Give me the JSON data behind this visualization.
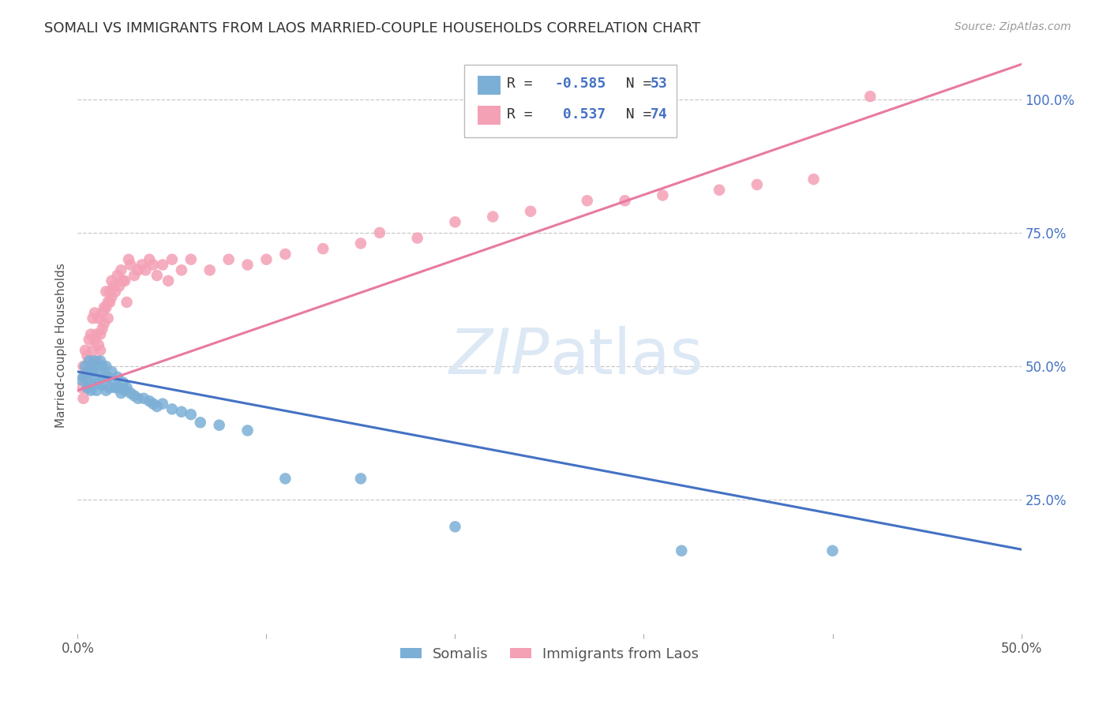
{
  "title": "SOMALI VS IMMIGRANTS FROM LAOS MARRIED-COUPLE HOUSEHOLDS CORRELATION CHART",
  "source": "Source: ZipAtlas.com",
  "ylabel": "Married-couple Households",
  "xlim": [
    0.0,
    0.5
  ],
  "ylim": [
    0.0,
    1.08
  ],
  "somali_R": -0.585,
  "somali_N": 53,
  "laos_R": 0.537,
  "laos_N": 74,
  "somali_color": "#7cafd6",
  "laos_color": "#f4a0b5",
  "somali_line_color": "#4472c4",
  "laos_line_color": "#e87aa0",
  "background_color": "#ffffff",
  "grid_color": "#c8c8c8",
  "watermark_color": "#dde8f5",
  "right_label_color": "#4472c4",
  "title_fontsize": 13,
  "source_fontsize": 10,
  "somali_x": [
    0.002,
    0.003,
    0.004,
    0.005,
    0.005,
    0.006,
    0.006,
    0.007,
    0.007,
    0.008,
    0.008,
    0.009,
    0.009,
    0.01,
    0.01,
    0.011,
    0.012,
    0.012,
    0.013,
    0.013,
    0.014,
    0.015,
    0.015,
    0.016,
    0.017,
    0.018,
    0.019,
    0.02,
    0.021,
    0.022,
    0.023,
    0.024,
    0.025,
    0.026,
    0.028,
    0.03,
    0.032,
    0.035,
    0.038,
    0.04,
    0.042,
    0.045,
    0.05,
    0.055,
    0.06,
    0.065,
    0.075,
    0.09,
    0.11,
    0.15,
    0.2,
    0.32,
    0.4
  ],
  "somali_y": [
    0.475,
    0.48,
    0.5,
    0.46,
    0.49,
    0.51,
    0.47,
    0.455,
    0.5,
    0.49,
    0.465,
    0.51,
    0.48,
    0.5,
    0.455,
    0.47,
    0.51,
    0.49,
    0.465,
    0.5,
    0.48,
    0.455,
    0.5,
    0.48,
    0.46,
    0.49,
    0.47,
    0.46,
    0.48,
    0.46,
    0.45,
    0.47,
    0.455,
    0.46,
    0.45,
    0.445,
    0.44,
    0.44,
    0.435,
    0.43,
    0.425,
    0.43,
    0.42,
    0.415,
    0.41,
    0.395,
    0.39,
    0.38,
    0.29,
    0.29,
    0.2,
    0.155,
    0.155
  ],
  "laos_x": [
    0.002,
    0.003,
    0.003,
    0.004,
    0.004,
    0.005,
    0.005,
    0.006,
    0.006,
    0.007,
    0.007,
    0.008,
    0.008,
    0.009,
    0.009,
    0.01,
    0.01,
    0.011,
    0.011,
    0.012,
    0.012,
    0.013,
    0.013,
    0.014,
    0.014,
    0.015,
    0.015,
    0.016,
    0.016,
    0.017,
    0.017,
    0.018,
    0.018,
    0.019,
    0.02,
    0.021,
    0.022,
    0.023,
    0.024,
    0.025,
    0.026,
    0.027,
    0.028,
    0.03,
    0.032,
    0.034,
    0.036,
    0.038,
    0.04,
    0.042,
    0.045,
    0.048,
    0.05,
    0.055,
    0.06,
    0.07,
    0.08,
    0.09,
    0.1,
    0.11,
    0.13,
    0.15,
    0.16,
    0.18,
    0.2,
    0.22,
    0.24,
    0.27,
    0.29,
    0.31,
    0.34,
    0.36,
    0.39,
    0.42
  ],
  "laos_y": [
    0.46,
    0.44,
    0.5,
    0.48,
    0.53,
    0.46,
    0.52,
    0.49,
    0.55,
    0.51,
    0.56,
    0.53,
    0.59,
    0.55,
    0.6,
    0.51,
    0.56,
    0.54,
    0.59,
    0.53,
    0.56,
    0.57,
    0.6,
    0.61,
    0.58,
    0.64,
    0.61,
    0.62,
    0.59,
    0.64,
    0.62,
    0.66,
    0.63,
    0.65,
    0.64,
    0.67,
    0.65,
    0.68,
    0.66,
    0.66,
    0.62,
    0.7,
    0.69,
    0.67,
    0.68,
    0.69,
    0.68,
    0.7,
    0.69,
    0.67,
    0.69,
    0.66,
    0.7,
    0.68,
    0.7,
    0.68,
    0.7,
    0.69,
    0.7,
    0.71,
    0.72,
    0.73,
    0.75,
    0.74,
    0.77,
    0.78,
    0.79,
    0.81,
    0.81,
    0.82,
    0.83,
    0.84,
    0.85,
    1.005
  ],
  "somali_line_x": [
    0.0,
    0.5
  ],
  "somali_line_y_intercept": 0.49,
  "somali_line_slope": -0.665,
  "laos_line_x": [
    0.0,
    0.5
  ],
  "laos_line_y_intercept": 0.455,
  "laos_line_slope": 1.22
}
